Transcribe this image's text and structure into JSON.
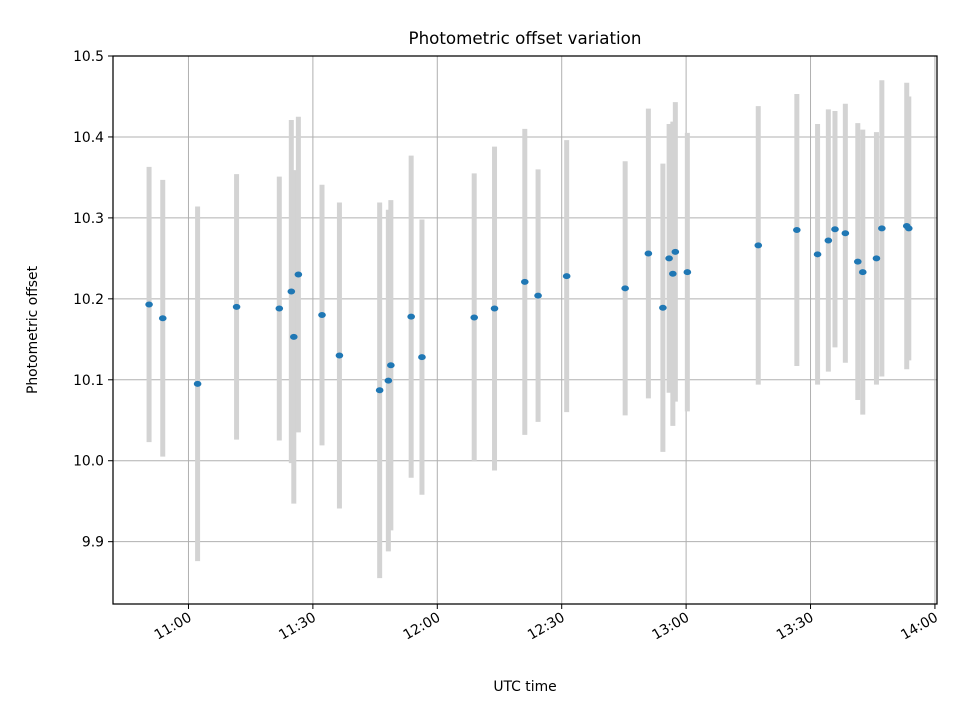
{
  "chart_data": {
    "type": "scatter",
    "title": "Photometric offset variation",
    "xlabel": "UTC time",
    "ylabel": "Photometric offset",
    "x_unit": "minutes after 10:00 UTC",
    "xlim": [
      "10:41:48",
      "14:00:30"
    ],
    "ylim": [
      9.823,
      10.5
    ],
    "grid": true,
    "x_ticks": [
      "11:00",
      "11:30",
      "12:00",
      "12:30",
      "13:00",
      "13:30",
      "14:00"
    ],
    "y_ticks": [
      "9.9",
      "10.0",
      "10.1",
      "10.2",
      "10.3",
      "10.4",
      "10.5"
    ],
    "colors": {
      "marker": "#1f77b4",
      "errorbar": "#d3d3d3",
      "grid": "#b0b0b0"
    },
    "points": [
      {
        "x": "10:50:30",
        "y": 10.193,
        "yerr": 0.17
      },
      {
        "x": "10:53:48",
        "y": 10.176,
        "yerr": 0.171
      },
      {
        "x": "11:02:12",
        "y": 10.095,
        "yerr": 0.219
      },
      {
        "x": "11:11:36",
        "y": 10.19,
        "yerr": 0.164
      },
      {
        "x": "11:21:54",
        "y": 10.188,
        "yerr": 0.163
      },
      {
        "x": "11:24:48",
        "y": 10.209,
        "yerr": 0.212
      },
      {
        "x": "11:25:24",
        "y": 10.153,
        "yerr": 0.206
      },
      {
        "x": "11:26:30",
        "y": 10.23,
        "yerr": 0.195
      },
      {
        "x": "11:32:12",
        "y": 10.18,
        "yerr": 0.161
      },
      {
        "x": "11:36:24",
        "y": 10.13,
        "yerr": 0.189
      },
      {
        "x": "11:46:06",
        "y": 10.087,
        "yerr": 0.232
      },
      {
        "x": "11:48:12",
        "y": 10.099,
        "yerr": 0.211
      },
      {
        "x": "11:48:48",
        "y": 10.118,
        "yerr": 0.204
      },
      {
        "x": "11:53:42",
        "y": 10.178,
        "yerr": 0.199
      },
      {
        "x": "11:56:18",
        "y": 10.128,
        "yerr": 0.17
      },
      {
        "x": "12:08:54",
        "y": 10.177,
        "yerr": 0.178
      },
      {
        "x": "12:13:48",
        "y": 10.188,
        "yerr": 0.2
      },
      {
        "x": "12:21:06",
        "y": 10.221,
        "yerr": 0.189
      },
      {
        "x": "12:24:18",
        "y": 10.204,
        "yerr": 0.156
      },
      {
        "x": "12:31:12",
        "y": 10.228,
        "yerr": 0.168
      },
      {
        "x": "12:45:18",
        "y": 10.213,
        "yerr": 0.157
      },
      {
        "x": "12:50:54",
        "y": 10.256,
        "yerr": 0.179
      },
      {
        "x": "12:54:24",
        "y": 10.189,
        "yerr": 0.178
      },
      {
        "x": "12:55:54",
        "y": 10.25,
        "yerr": 0.166
      },
      {
        "x": "12:56:48",
        "y": 10.231,
        "yerr": 0.188
      },
      {
        "x": "12:57:24",
        "y": 10.258,
        "yerr": 0.185
      },
      {
        "x": "13:00:18",
        "y": 10.233,
        "yerr": 0.172
      },
      {
        "x": "13:17:24",
        "y": 10.266,
        "yerr": 0.172
      },
      {
        "x": "13:26:42",
        "y": 10.285,
        "yerr": 0.168
      },
      {
        "x": "13:31:42",
        "y": 10.255,
        "yerr": 0.161
      },
      {
        "x": "13:34:18",
        "y": 10.272,
        "yerr": 0.162
      },
      {
        "x": "13:35:54",
        "y": 10.286,
        "yerr": 0.146
      },
      {
        "x": "13:38:24",
        "y": 10.281,
        "yerr": 0.16
      },
      {
        "x": "13:41:24",
        "y": 10.246,
        "yerr": 0.171
      },
      {
        "x": "13:42:36",
        "y": 10.233,
        "yerr": 0.176
      },
      {
        "x": "13:45:54",
        "y": 10.25,
        "yerr": 0.156
      },
      {
        "x": "13:47:12",
        "y": 10.287,
        "yerr": 0.183
      },
      {
        "x": "13:53:12",
        "y": 10.29,
        "yerr": 0.177
      },
      {
        "x": "13:53:42",
        "y": 10.287,
        "yerr": 0.163
      }
    ]
  }
}
